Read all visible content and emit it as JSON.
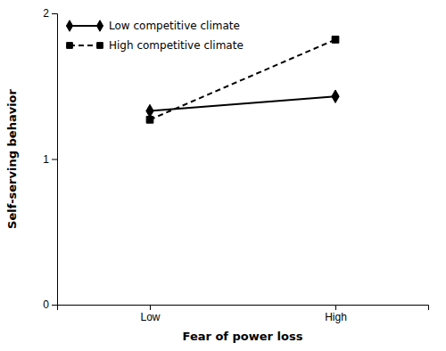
{
  "chart_data": {
    "type": "line",
    "categories": [
      "Low",
      "High"
    ],
    "series": [
      {
        "name": "Low competitive climate",
        "color": "#000000",
        "marker": "diamond",
        "line_style": "solid",
        "values": [
          1.33,
          1.43
        ]
      },
      {
        "name": "High competitive climate",
        "color": "#000000",
        "marker": "square",
        "line_style": "dashed",
        "values": [
          1.27,
          1.82
        ]
      }
    ],
    "xlabel": "Fear of power loss",
    "ylabel": "Self-serving behavior",
    "ylim": [
      0,
      2
    ],
    "yticks": [
      0,
      1,
      2
    ],
    "grid": false,
    "legend": "upper left"
  }
}
